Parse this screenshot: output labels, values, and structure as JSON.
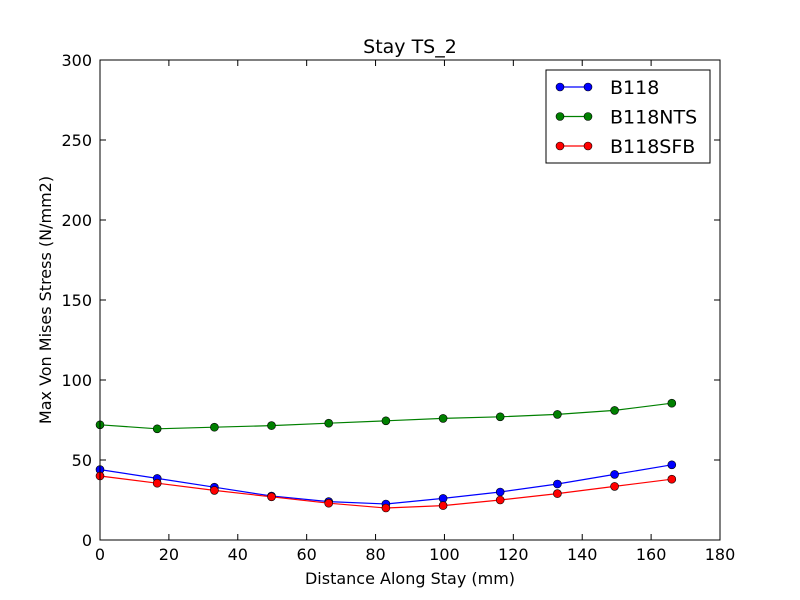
{
  "chart_data": {
    "type": "line",
    "title": "Stay TS_2",
    "xlabel": "Distance Along Stay (mm)",
    "ylabel": "Max Von Mises Stress (N/mm2)",
    "xlim": [
      0,
      180
    ],
    "ylim": [
      0,
      300
    ],
    "x_ticks": [
      "0",
      "20",
      "40",
      "60",
      "80",
      "100",
      "120",
      "140",
      "160",
      "180"
    ],
    "y_ticks": [
      "0",
      "50",
      "100",
      "150",
      "200",
      "250",
      "300"
    ],
    "grid": false,
    "legend_position": "top-right",
    "x": [
      0,
      16.6,
      33.2,
      49.8,
      66.4,
      83.0,
      99.6,
      116.2,
      132.8,
      149.4,
      166.0
    ],
    "series": [
      {
        "name": "B118",
        "color": "#0000ff",
        "values": [
          44,
          38.5,
          33,
          27.5,
          24,
          22.5,
          26,
          30,
          35,
          41,
          47
        ]
      },
      {
        "name": "B118NTS",
        "color": "#008000",
        "values": [
          72,
          69.5,
          70.5,
          71.5,
          73,
          74.5,
          76,
          77,
          78.5,
          81,
          85.5
        ]
      },
      {
        "name": "B118SFB",
        "color": "#ff0000",
        "values": [
          40,
          35.5,
          31,
          27,
          23,
          20,
          21.5,
          25,
          29,
          33.5,
          38
        ]
      }
    ]
  }
}
